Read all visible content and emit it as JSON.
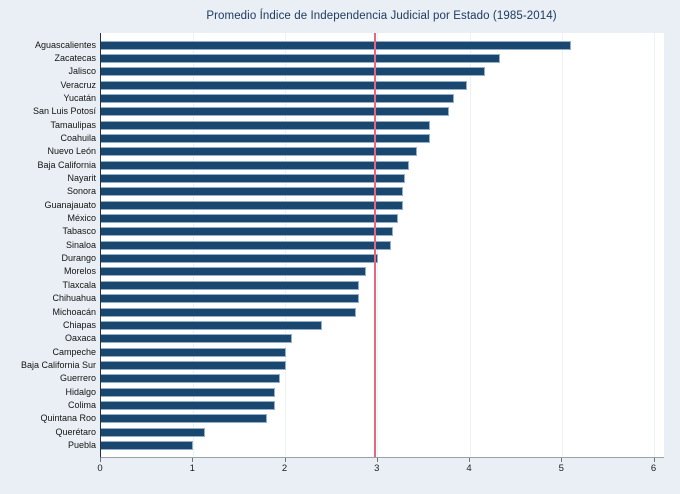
{
  "title": "Promedio Índice de Independencia Judicial por Estado (1985-2014)",
  "colors": {
    "page_background": "#e9eff4",
    "plot_background": "#ffffff",
    "bar_fill": "#1a476f",
    "bar_border": "#93afc9",
    "reference_line": "#e4687e",
    "x_axis_line": "#9aa0a6",
    "y_axis_line": "#22313f",
    "gridline": "#ecf1f6",
    "title_text": "#1f3a60",
    "label_text": "#131313"
  },
  "chart_data": {
    "type": "bar",
    "orientation": "horizontal",
    "title": "Promedio Índice de Independencia Judicial por Estado (1985-2014)",
    "xlabel": "",
    "ylabel": "",
    "xlim": [
      0,
      6
    ],
    "xticks": [
      "0",
      "1",
      "2",
      "3",
      "4",
      "5",
      "6"
    ],
    "grid": true,
    "legend": false,
    "reference_line_x": 2.97,
    "categories": [
      "Aguascalientes",
      "Zacatecas",
      "Jalisco",
      "Veracruz",
      "Yucatán",
      "San Luis Potosí",
      "Tamaulipas",
      "Coahuila",
      "Nuevo León",
      "Baja California",
      "Nayarit",
      "Sonora",
      "Guanajauato",
      "México",
      "Tabasco",
      "Sinaloa",
      "Durango",
      "Morelos",
      "Tlaxcala",
      "Chihuahua",
      "Michoacán",
      "Chiapas",
      "Oaxaca",
      "Campeche",
      "Baja California Sur",
      "Guerrero",
      "Hidalgo",
      "Colima",
      "Quintana Roo",
      "Querétaro",
      "Puebla"
    ],
    "values": [
      5.1,
      4.33,
      4.16,
      3.97,
      3.83,
      3.77,
      3.57,
      3.57,
      3.43,
      3.34,
      3.3,
      3.27,
      3.27,
      3.22,
      3.16,
      3.14,
      3.0,
      2.87,
      2.8,
      2.8,
      2.76,
      2.4,
      2.07,
      2.0,
      2.0,
      1.94,
      1.89,
      1.89,
      1.8,
      1.13,
      1.0
    ]
  }
}
